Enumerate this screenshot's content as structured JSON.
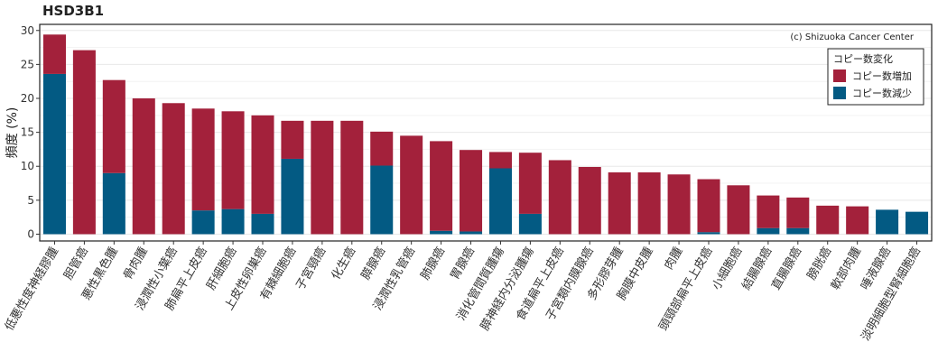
{
  "chart_data": {
    "type": "bar",
    "stacked": true,
    "title": "HSD3B1",
    "ylabel": "頻度 (%)",
    "xlabel": "",
    "ylim": [
      0,
      31
    ],
    "yticks": [
      0,
      5,
      10,
      15,
      20,
      25,
      30
    ],
    "grid": true,
    "credit": "(c) Shizuoka Cancer Center",
    "legend": {
      "title": "コピー数変化",
      "position": "top-right"
    },
    "categories": [
      "低悪性度神経膠腫",
      "胆管癌",
      "悪性黒色腫",
      "骨肉腫",
      "浸潤性小葉癌",
      "肺扁平上皮癌",
      "肝細胞癌",
      "上皮性卵巣癌",
      "有棘細胞癌",
      "子宮頸癌",
      "化生癌",
      "膵腺癌",
      "浸潤性乳管癌",
      "肺腺癌",
      "胃腺癌",
      "消化管間質腫瘍",
      "膵神経内分泌腫瘍",
      "食道扁平上皮癌",
      "子宮類内膜腺癌",
      "多形膠芽腫",
      "胸膜中皮腫",
      "肉腫",
      "頭頸部扁平上皮癌",
      "小細胞癌",
      "結腸腺癌",
      "直腸腺癌",
      "膀胱癌",
      "軟部肉腫",
      "唾液腺癌",
      "淡明細胞型腎細胞癌"
    ],
    "series": [
      {
        "name": "コピー数増加",
        "color": "#a3213b",
        "values": [
          5.8,
          27.1,
          13.7,
          20.0,
          19.3,
          15.0,
          14.4,
          14.5,
          5.6,
          16.7,
          16.7,
          5.0,
          14.5,
          13.2,
          12.0,
          2.4,
          9.0,
          10.9,
          9.9,
          9.1,
          9.1,
          8.8,
          7.8,
          7.2,
          4.8,
          4.5,
          4.2,
          4.1,
          0.0,
          0.0
        ]
      },
      {
        "name": "コピー数減少",
        "color": "#035a83",
        "values": [
          23.6,
          0.0,
          9.0,
          0.0,
          0.0,
          3.5,
          3.7,
          3.0,
          11.1,
          0.0,
          0.0,
          10.1,
          0.0,
          0.5,
          0.4,
          9.7,
          3.0,
          0.0,
          0.0,
          0.0,
          0.0,
          0.0,
          0.3,
          0.0,
          0.9,
          0.9,
          0.0,
          0.0,
          3.6,
          3.3
        ]
      }
    ]
  }
}
